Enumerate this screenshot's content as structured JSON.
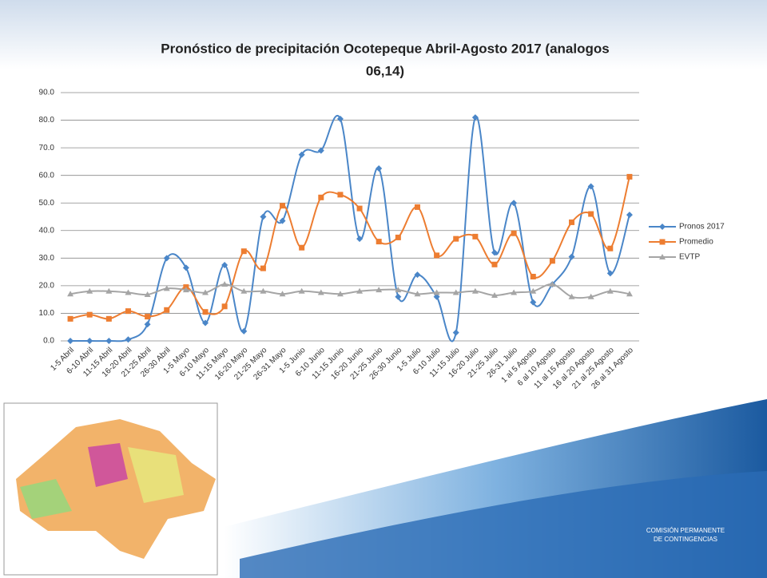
{
  "chart_data": {
    "type": "line",
    "title": "Pronóstico de precipitación Ocotepeque Abril-Agosto 2017 (analogos 06,14)",
    "categories": [
      "1-5 Abril",
      "6-10 Abril",
      "11-15 Abril",
      "16-20 Abril",
      "21-25 Abril",
      "26-30 Abril",
      "1-5 Mayo",
      "6-10 Mayo",
      "11-15 Mayo",
      "16-20 Mayo",
      "21-25 Mayo",
      "26-31 Mayo",
      "1-5 Junio",
      "6-10 Junio",
      "11-15 Junio",
      "16-20 Junio",
      "21-25 Junio",
      "26-30 Junio",
      "1-5 Julio",
      "6-10 Julio",
      "11-15 Julio",
      "16-20 Julio",
      "21-25 Julio",
      "26-31 Julio",
      "1 al 5 Agosto",
      "6 al 10 Agosto",
      "11 al 15 Agosto",
      "16 al 20 Agosto",
      "21 al 25 Agosto",
      "26 al 31 Agosto"
    ],
    "series": [
      {
        "name": "Pronos 2017",
        "color": "#4a86c8",
        "marker": "diamond",
        "values": [
          0,
          0,
          0,
          0.5,
          6,
          30,
          26.5,
          6.5,
          27.5,
          3.5,
          45,
          43.5,
          67.5,
          69,
          80.5,
          37,
          62.5,
          16,
          24,
          16,
          3,
          81,
          32,
          50,
          14,
          20.5,
          30.5,
          56,
          24.5,
          45.7
        ]
      },
      {
        "name": "Promedio",
        "color": "#ed7d31",
        "marker": "square",
        "values": [
          8,
          9.5,
          8,
          10.8,
          8.8,
          11.2,
          19.5,
          10.5,
          12.5,
          32.5,
          26.3,
          49,
          33.8,
          52,
          53,
          48,
          36,
          37.5,
          48.5,
          31,
          37,
          37.8,
          27.7,
          39,
          23.3,
          29,
          43,
          46,
          33.5,
          59.5
        ]
      },
      {
        "name": "EVTP",
        "color": "#a5a5a5",
        "marker": "triangle",
        "values": [
          17,
          18,
          18,
          17.5,
          16.8,
          19,
          18.5,
          17.5,
          20.5,
          18,
          18,
          17,
          18,
          17.5,
          17,
          18,
          18.5,
          18.5,
          17,
          17.5,
          17.5,
          18,
          16.5,
          17.5,
          18,
          20.5,
          16,
          16,
          18,
          17
        ]
      }
    ],
    "ylim": [
      0,
      90
    ],
    "yticks": [
      {
        "value": 0,
        "label": "0.0"
      },
      {
        "value": 10,
        "label": "10.0"
      },
      {
        "value": 20,
        "label": "20.0"
      },
      {
        "value": 30,
        "label": "30.0"
      },
      {
        "value": 40,
        "label": "40.0"
      },
      {
        "value": 50,
        "label": "50.0"
      },
      {
        "value": 60,
        "label": "60.0"
      },
      {
        "value": 70,
        "label": "70.0"
      },
      {
        "value": 80,
        "label": "80.0"
      },
      {
        "value": 90,
        "label": "90.0"
      }
    ],
    "grid": true,
    "legend": "right",
    "smooth": true
  },
  "logo": {
    "lines": [
      "COMISIÓN PERMANENTE",
      "DE CONTINGENCIAS"
    ]
  }
}
